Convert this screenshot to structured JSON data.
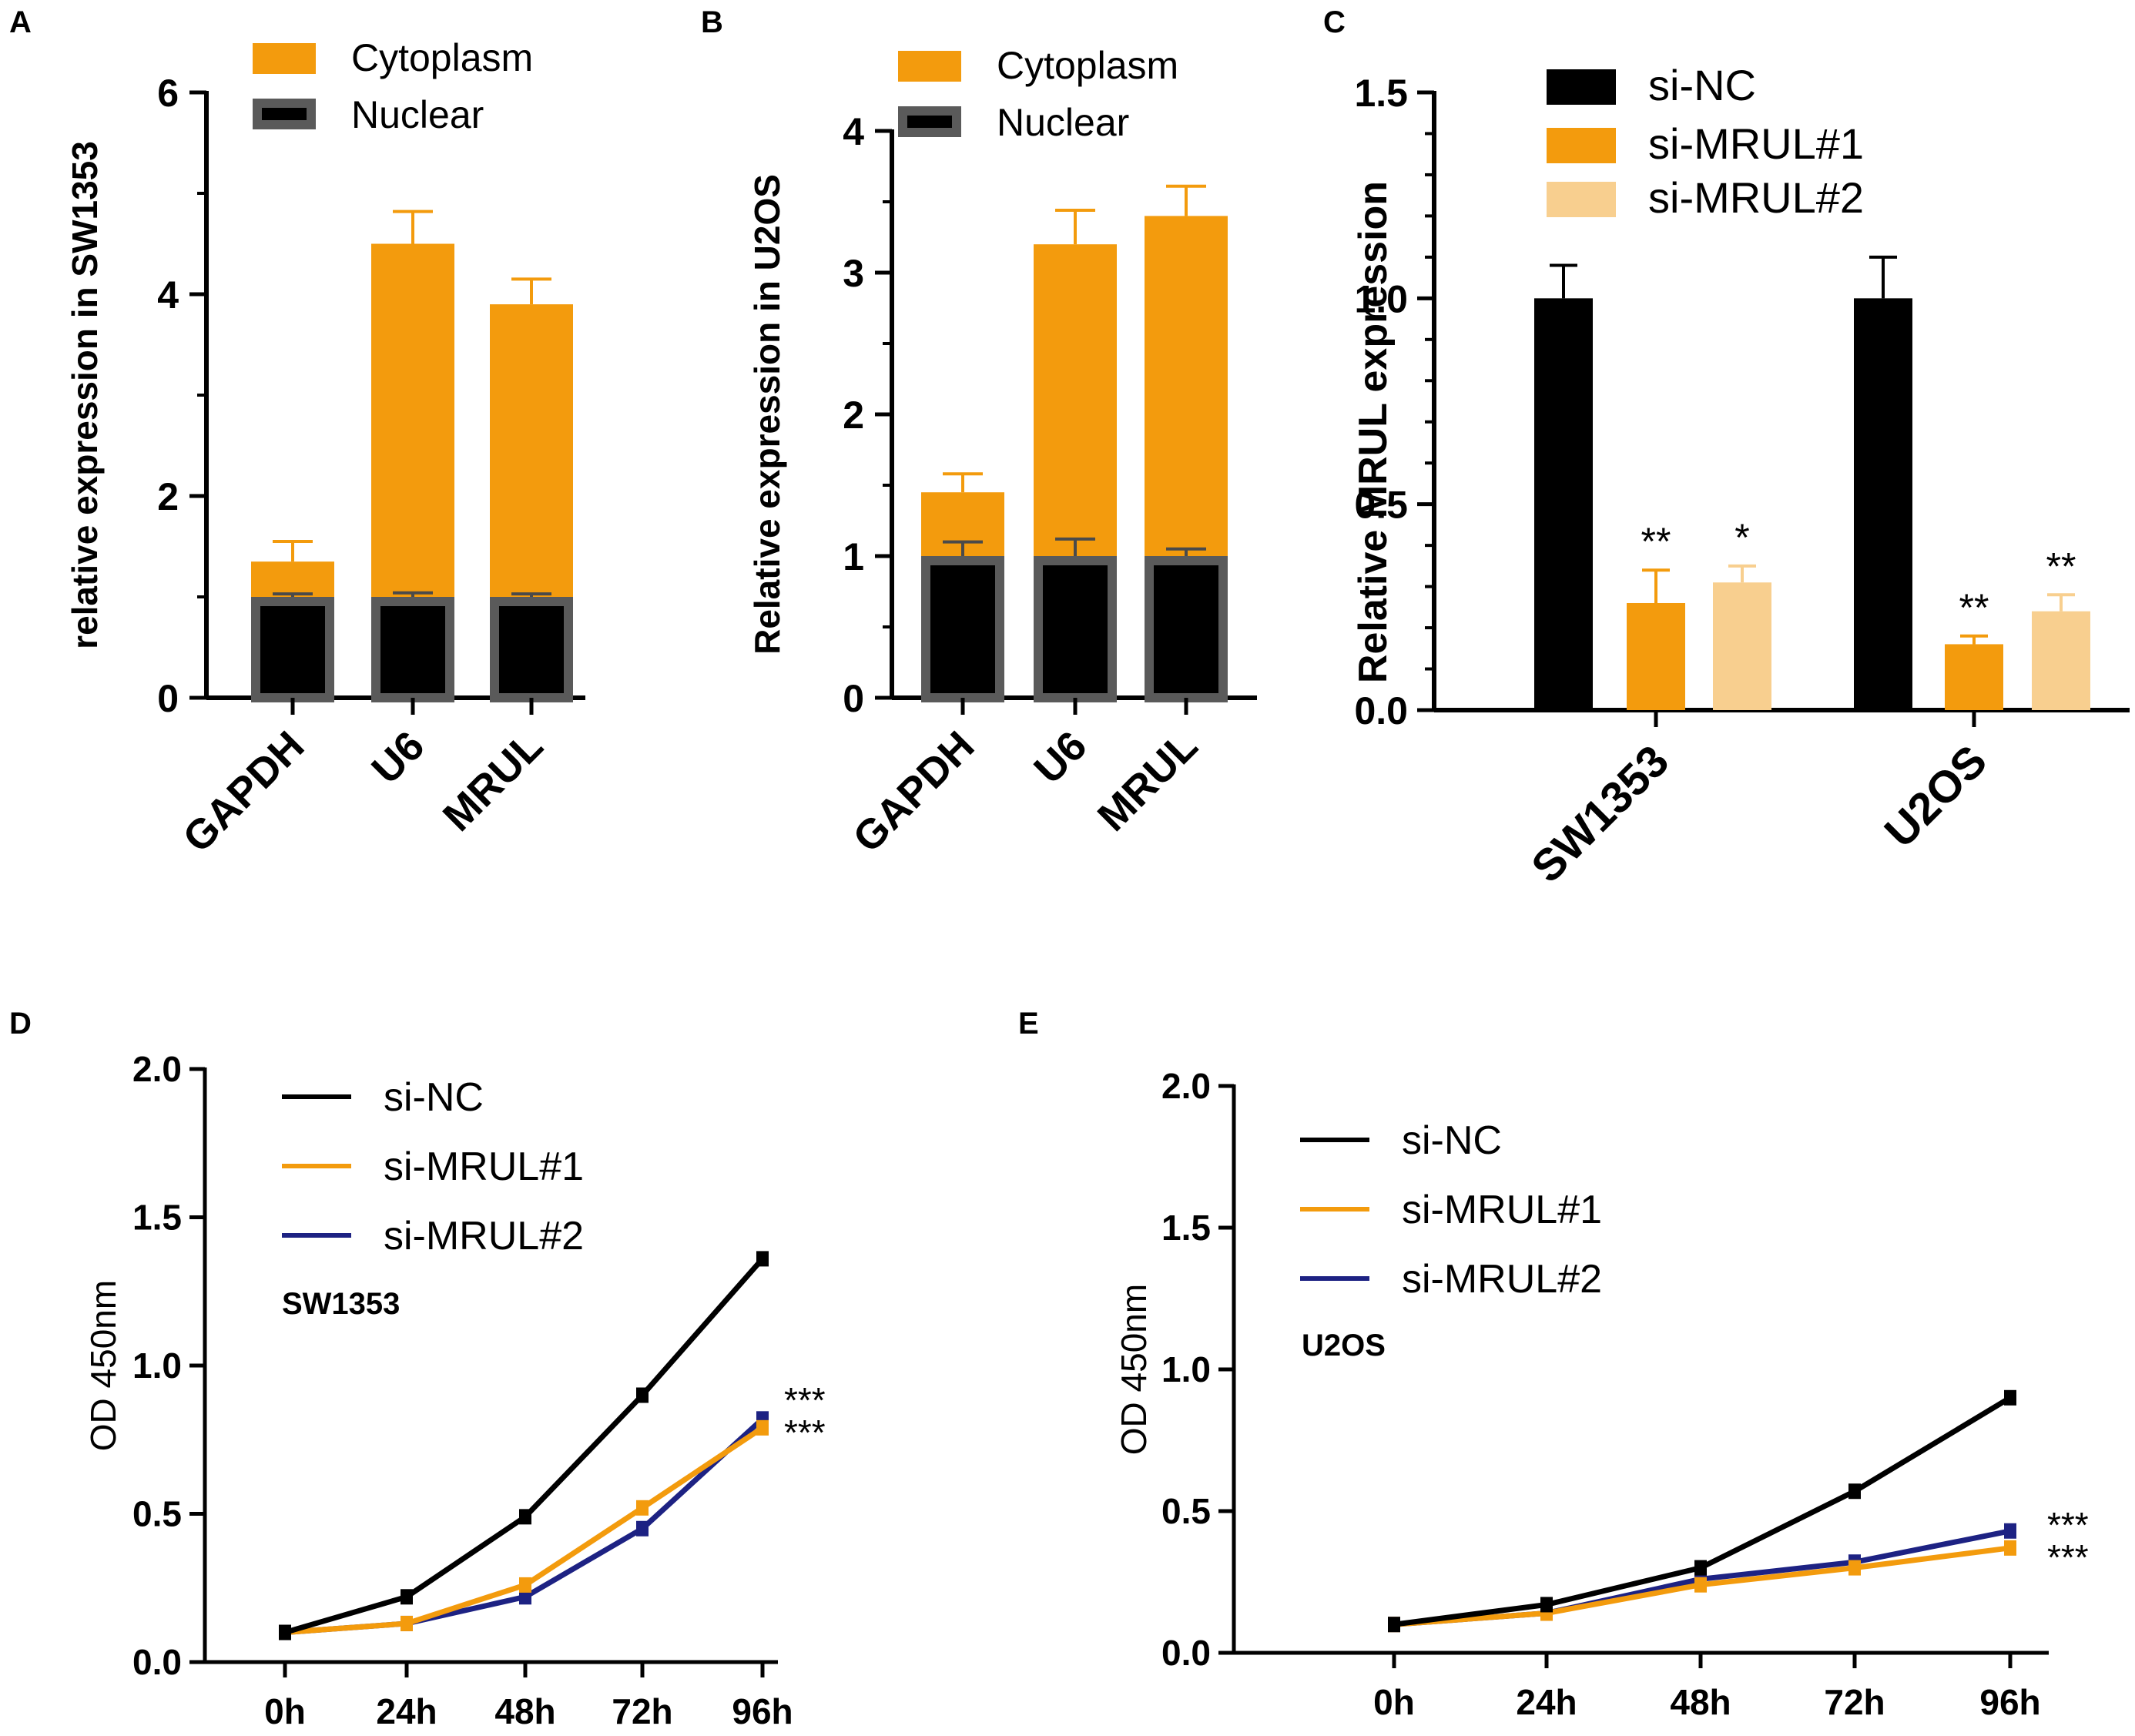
{
  "colors": {
    "cytoplasm": "#f39b0d",
    "nuclear": "#000000",
    "nuclear_edge": "#5a5a5a",
    "si_nc": "#000000",
    "si_mrul1": "#f39b0d",
    "si_mrul2_bar": "#f8cf8f",
    "si_mrul2_line": "#1d2283"
  },
  "chart_data": [
    {
      "panel": "A",
      "type": "bar",
      "stacked": true,
      "ylabel": "relative  expression in SW1353",
      "ylim": [
        0,
        6
      ],
      "yticks": [
        "0",
        "2",
        "4",
        "6"
      ],
      "categories": [
        "GAPDH",
        "U6",
        "MRUL"
      ],
      "legend": [
        "Cytoplasm",
        "Nuclear"
      ],
      "series": [
        {
          "name": "Nuclear",
          "values": [
            1.0,
            1.0,
            1.0
          ],
          "errors": [
            0.03,
            0.04,
            0.03
          ]
        },
        {
          "name": "Cytoplasm",
          "totals": [
            1.35,
            4.5,
            3.9
          ],
          "errors": [
            0.2,
            0.32,
            0.25
          ]
        }
      ]
    },
    {
      "panel": "B",
      "type": "bar",
      "stacked": true,
      "ylabel": "Relative  expression in U2OS",
      "ylim": [
        0,
        4
      ],
      "yticks": [
        "0",
        "1",
        "2",
        "3",
        "4"
      ],
      "categories": [
        "GAPDH",
        "U6",
        "MRUL"
      ],
      "legend": [
        "Cytoplasm",
        "Nuclear"
      ],
      "series": [
        {
          "name": "Nuclear",
          "values": [
            1.0,
            1.0,
            1.0
          ],
          "errors": [
            0.1,
            0.12,
            0.05
          ]
        },
        {
          "name": "Cytoplasm",
          "totals": [
            1.45,
            3.2,
            3.4
          ],
          "errors": [
            0.13,
            0.24,
            0.21
          ]
        }
      ]
    },
    {
      "panel": "C",
      "type": "bar",
      "ylabel": "Relative  MRUL expression",
      "ylim": [
        0,
        1.5
      ],
      "yticks": [
        "0.0",
        "0.5",
        "1.0",
        "1.5"
      ],
      "categories": [
        "SW1353",
        "U2OS"
      ],
      "legend": [
        "si-NC",
        "si-MRUL#1",
        "si-MRUL#2"
      ],
      "series": [
        {
          "name": "si-NC",
          "values": [
            1.0,
            1.0
          ],
          "errors": [
            0.08,
            0.1
          ]
        },
        {
          "name": "si-MRUL#1",
          "values": [
            0.26,
            0.16
          ],
          "errors": [
            0.08,
            0.02
          ],
          "annotations": [
            "**",
            "**"
          ]
        },
        {
          "name": "si-MRUL#2",
          "values": [
            0.31,
            0.24
          ],
          "errors": [
            0.04,
            0.04
          ],
          "annotations": [
            "*",
            "**"
          ]
        }
      ]
    },
    {
      "panel": "D",
      "type": "line",
      "ylabel": "OD 450nm",
      "ylim": [
        0,
        2.0
      ],
      "yticks": [
        "0.0",
        "0.5",
        "1.0",
        "1.5",
        "2.0"
      ],
      "x": [
        "0h",
        "24h",
        "48h",
        "72h",
        "96h"
      ],
      "inner_label": "SW1353",
      "legend": [
        "si-NC",
        "si-MRUL#1",
        "si-MRUL#2"
      ],
      "series": [
        {
          "name": "si-NC",
          "values": [
            0.1,
            0.22,
            0.49,
            0.9,
            1.36
          ]
        },
        {
          "name": "si-MRUL#1",
          "values": [
            0.1,
            0.13,
            0.26,
            0.52,
            0.79
          ]
        },
        {
          "name": "si-MRUL#2",
          "values": [
            0.1,
            0.13,
            0.22,
            0.45,
            0.82
          ]
        }
      ],
      "significance": [
        "***",
        "***"
      ]
    },
    {
      "panel": "E",
      "type": "line",
      "ylabel": "OD 450nm",
      "ylim": [
        0,
        2.0
      ],
      "yticks": [
        "0.0",
        "0.5",
        "1.0",
        "1.5",
        "2.0"
      ],
      "x": [
        "0h",
        "24h",
        "48h",
        "72h",
        "96h"
      ],
      "inner_label": "U2OS",
      "legend": [
        "si-NC",
        "si-MRUL#1",
        "si-MRUL#2"
      ],
      "series": [
        {
          "name": "si-NC",
          "values": [
            0.1,
            0.17,
            0.3,
            0.57,
            0.9
          ]
        },
        {
          "name": "si-MRUL#1",
          "values": [
            0.1,
            0.14,
            0.24,
            0.3,
            0.37
          ]
        },
        {
          "name": "si-MRUL#2",
          "values": [
            0.1,
            0.14,
            0.26,
            0.32,
            0.43
          ]
        }
      ],
      "significance": [
        "***",
        "***"
      ]
    }
  ]
}
